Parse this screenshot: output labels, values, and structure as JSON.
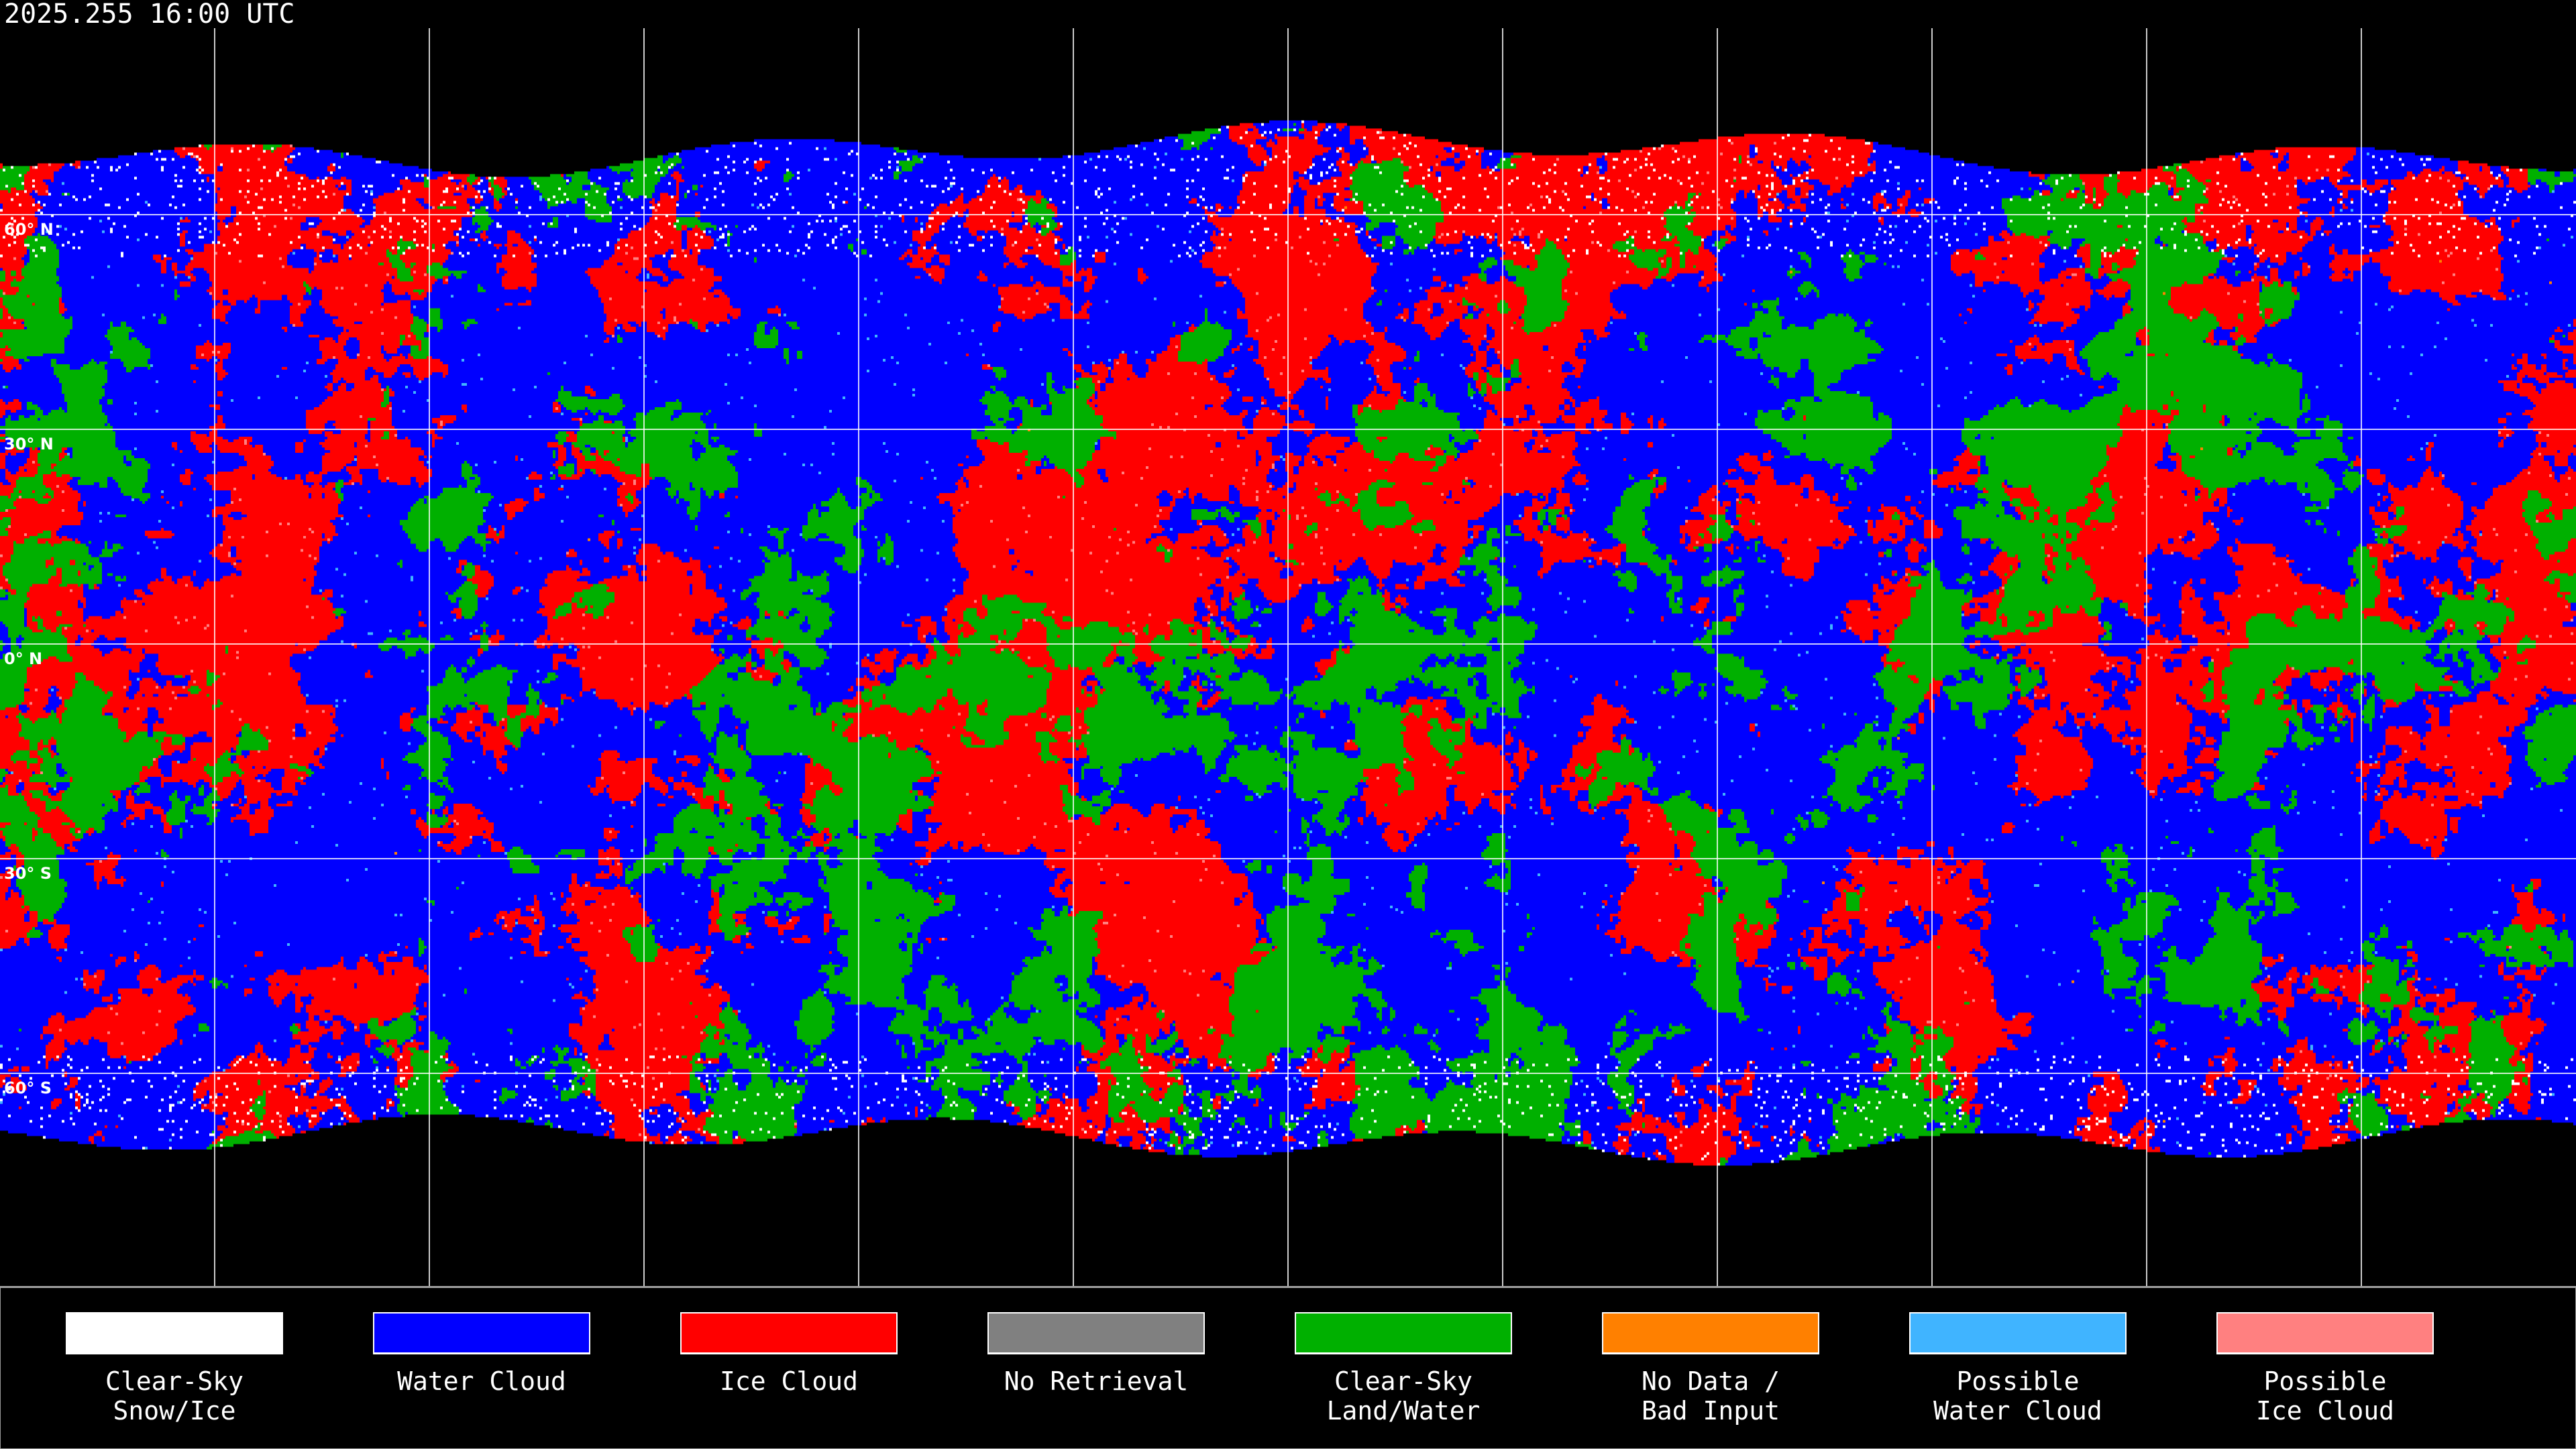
{
  "header": {
    "timestamp": "2025.255 16:00 UTC"
  },
  "map": {
    "projection": "equirectangular",
    "gridline_spacing_deg": 30,
    "lat_labels": [
      "60° N",
      "30° N",
      "0° N",
      "30° S",
      "60° S"
    ]
  },
  "legend": [
    {
      "line1": "Clear-Sky",
      "line2": "Snow/Ice",
      "color": "#ffffff"
    },
    {
      "line1": "Water Cloud",
      "line2": "",
      "color": "#0000ff"
    },
    {
      "line1": "Ice Cloud",
      "line2": "",
      "color": "#ff0000"
    },
    {
      "line1": "No Retrieval",
      "line2": "",
      "color": "#808080"
    },
    {
      "line1": "Clear-Sky",
      "line2": "Land/Water",
      "color": "#00b000"
    },
    {
      "line1": "No Data /",
      "line2": "Bad Input",
      "color": "#ff8000"
    },
    {
      "line1": "Possible",
      "line2": "Water Cloud",
      "color": "#40b4ff"
    },
    {
      "line1": "Possible",
      "line2": "Ice Cloud",
      "color": "#ff8080"
    }
  ]
}
